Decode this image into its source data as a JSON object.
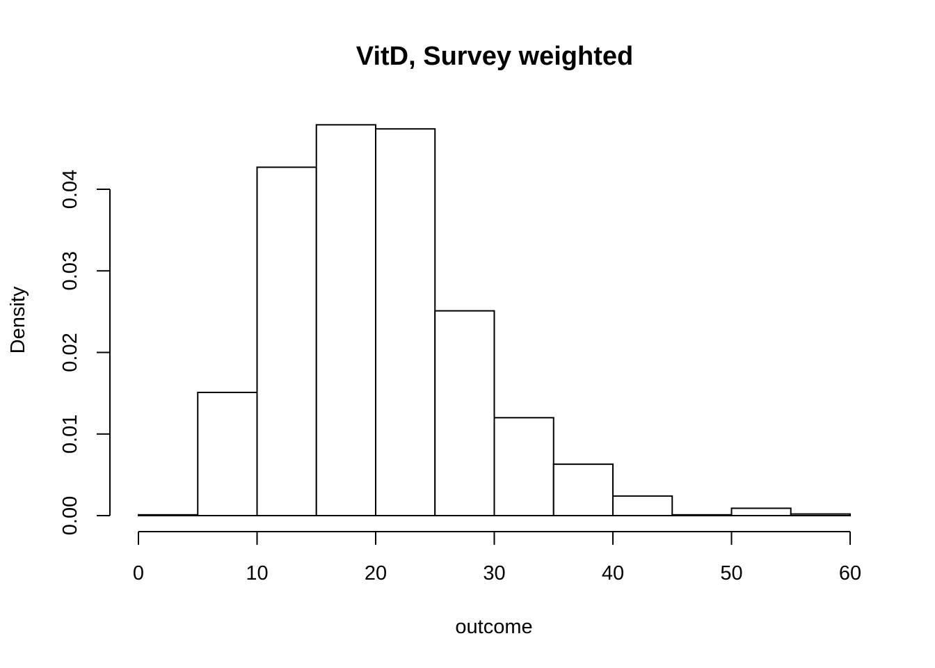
{
  "chart_data": {
    "type": "bar",
    "subtype": "histogram",
    "title": "VitD, Survey weighted",
    "xlabel": "outcome",
    "ylabel": "Density",
    "bins": [
      {
        "x0": 0,
        "x1": 5,
        "density": 0.0001
      },
      {
        "x0": 5,
        "x1": 10,
        "density": 0.0151
      },
      {
        "x0": 10,
        "x1": 15,
        "density": 0.0427
      },
      {
        "x0": 15,
        "x1": 20,
        "density": 0.0479
      },
      {
        "x0": 20,
        "x1": 25,
        "density": 0.0474
      },
      {
        "x0": 25,
        "x1": 30,
        "density": 0.0251
      },
      {
        "x0": 30,
        "x1": 35,
        "density": 0.012
      },
      {
        "x0": 35,
        "x1": 40,
        "density": 0.0063
      },
      {
        "x0": 40,
        "x1": 45,
        "density": 0.0024
      },
      {
        "x0": 45,
        "x1": 50,
        "density": 0.0001
      },
      {
        "x0": 50,
        "x1": 55,
        "density": 0.0009
      },
      {
        "x0": 55,
        "x1": 60,
        "density": 0.0002
      }
    ],
    "xlim": [
      0,
      60
    ],
    "ylim": [
      0,
      0.04
    ],
    "x_ticks": [
      0,
      10,
      20,
      30,
      40,
      50,
      60
    ],
    "x_tick_labels": [
      "0",
      "10",
      "20",
      "30",
      "40",
      "50",
      "60"
    ],
    "y_ticks": [
      0,
      0.01,
      0.02,
      0.03,
      0.04
    ],
    "y_tick_labels": [
      "0.00",
      "0.01",
      "0.02",
      "0.03",
      "0.04"
    ],
    "grid": false,
    "legend": "none",
    "bar_fill": "#ffffff",
    "bar_stroke": "#000000"
  }
}
